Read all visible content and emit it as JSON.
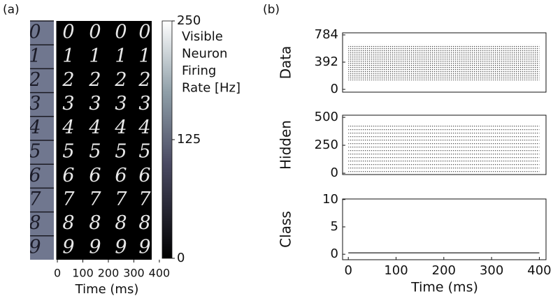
{
  "chart_data": [
    {
      "type": "image",
      "panel_label": "(a)",
      "digits": [
        "0",
        "1",
        "2",
        "3",
        "4",
        "5",
        "6",
        "7",
        "8",
        "9"
      ],
      "xlim": [
        -107,
        370
      ],
      "xticks": [
        0,
        100,
        200,
        300,
        400
      ],
      "xlabel": "Time (ms)",
      "colorbar": {
        "lines": [
          "Visible",
          "Neuron",
          "Firing",
          "Rate [Hz]"
        ],
        "lim": [
          0,
          250
        ],
        "ticks": [
          0,
          125,
          250
        ]
      }
    },
    {
      "type": "raster",
      "panel_label": "(b)",
      "ylabel": "Data",
      "xlim": [
        -12,
        414
      ],
      "ylim": [
        -40,
        814
      ],
      "yticks": [
        0,
        392,
        784
      ],
      "spike_region": {
        "x": [
          0,
          400
        ],
        "y": [
          130,
          640
        ]
      }
    },
    {
      "type": "raster",
      "ylabel": "Hidden",
      "xlim": [
        -12,
        414
      ],
      "ylim": [
        -12,
        519
      ],
      "yticks": [
        0,
        250,
        500
      ],
      "spike_region": {
        "x": [
          0,
          400
        ],
        "y": [
          10,
          430
        ]
      }
    },
    {
      "type": "raster",
      "ylabel": "Class",
      "xlim": [
        -12,
        414
      ],
      "ylim": [
        -1,
        10.1
      ],
      "yticks": [
        0,
        5,
        10
      ],
      "xticks": [
        0,
        100,
        200,
        300,
        400
      ],
      "xlabel": "Time (ms)",
      "spike_region": {
        "x": [
          0,
          400
        ],
        "y": [
          0.15,
          0.35
        ]
      }
    }
  ]
}
